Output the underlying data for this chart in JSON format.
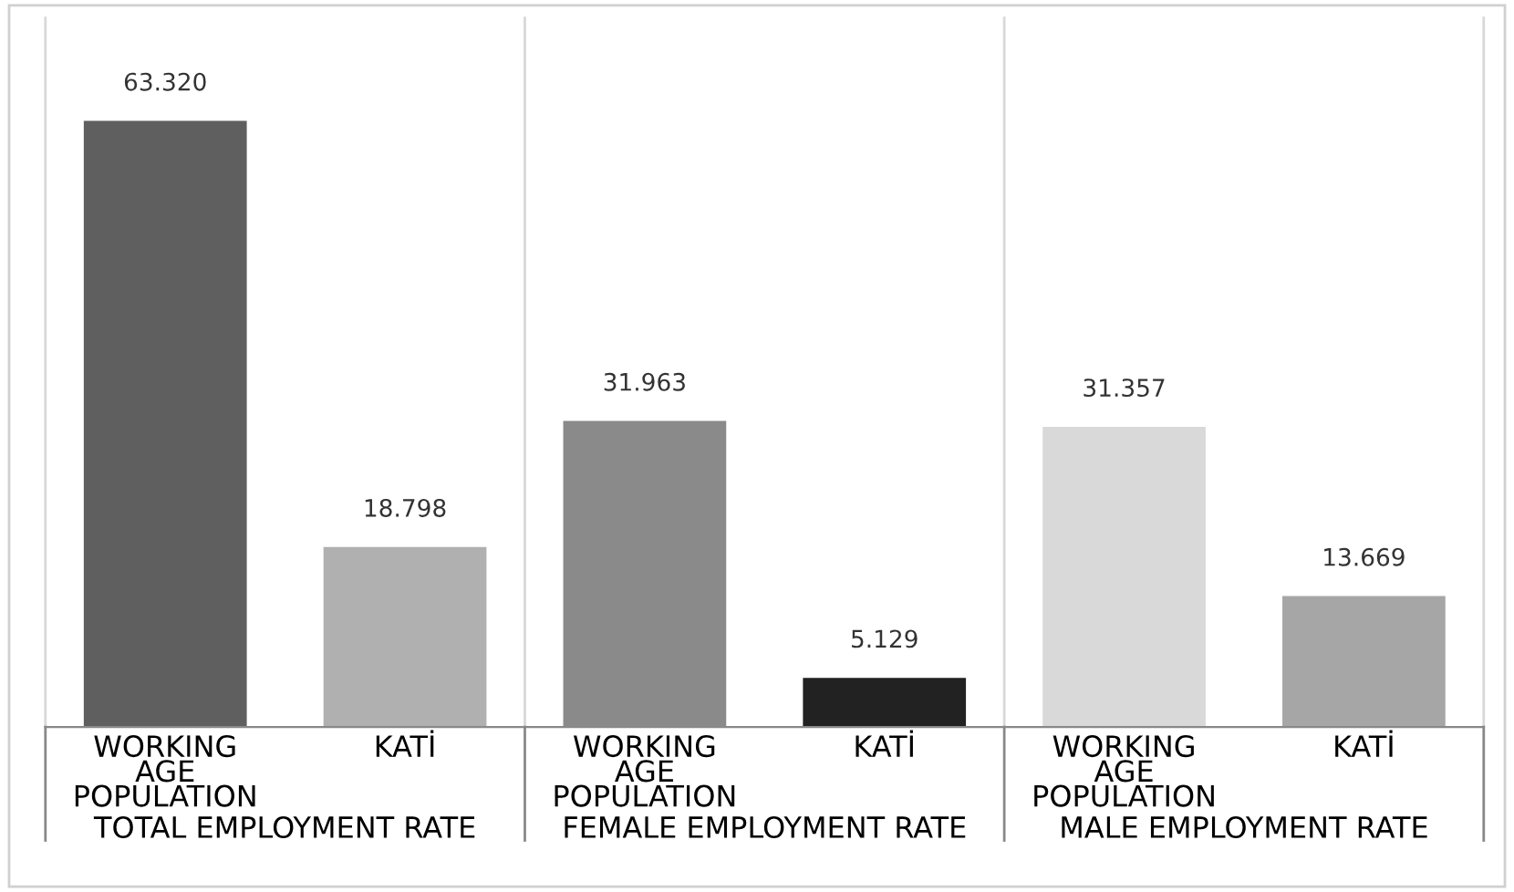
{
  "chart_data": {
    "type": "bar",
    "categories": [
      "WORKING AGE POPULATION",
      "KATİ",
      "WORKING AGE POPULATION",
      "KATİ",
      "WORKING AGE POPULATION",
      "KATİ"
    ],
    "values": [
      63.32,
      18.798,
      31.963,
      5.129,
      31.357,
      13.669
    ],
    "value_labels": [
      "63.320",
      "18.798",
      "31.963",
      "5.129",
      "31.357",
      "13.669"
    ],
    "colors": [
      "#5f5f5f",
      "#b0b0b0",
      "#8a8a8a",
      "#222222",
      "#d9d9d9",
      "#a6a6a6"
    ],
    "annotations": [
      "TOTAL EMPLOYMENT RATE",
      "FEMALE EMPLOYMENT RATE",
      "MALE EMPLOYMENT RATE"
    ],
    "grid": false,
    "legend": false
  }
}
